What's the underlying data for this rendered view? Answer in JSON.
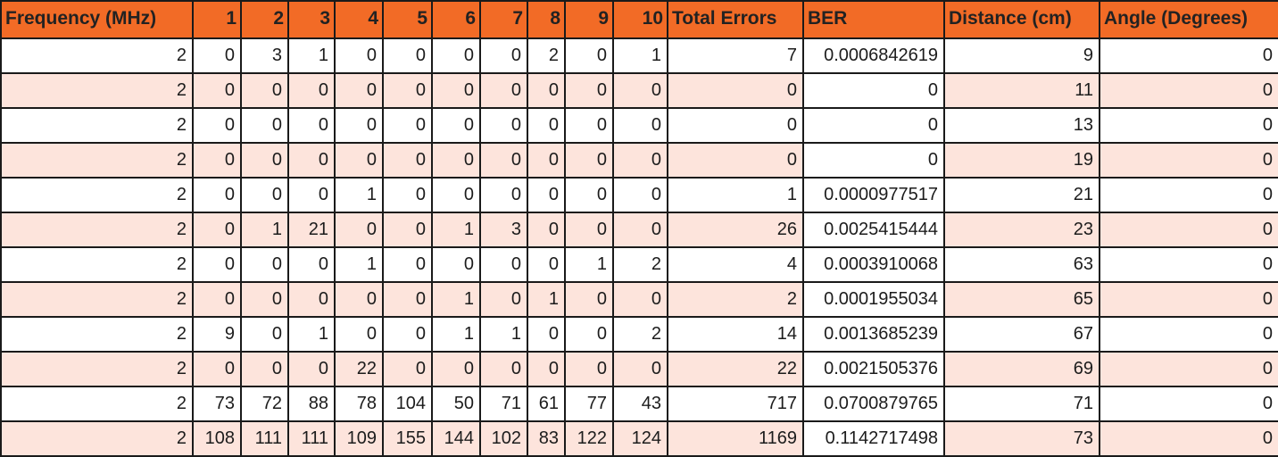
{
  "table": {
    "headers": [
      "Frequency (MHz)",
      "1",
      "2",
      "3",
      "4",
      "5",
      "6",
      "7",
      "8",
      "9",
      "10",
      "Total Errors",
      "BER",
      "Distance (cm)",
      "Angle (Degrees)"
    ],
    "rows": [
      [
        "2",
        "0",
        "3",
        "1",
        "0",
        "0",
        "0",
        "0",
        "2",
        "0",
        "1",
        "7",
        "0.0006842619",
        "9",
        "0"
      ],
      [
        "2",
        "0",
        "0",
        "0",
        "0",
        "0",
        "0",
        "0",
        "0",
        "0",
        "0",
        "0",
        "0",
        "11",
        "0"
      ],
      [
        "2",
        "0",
        "0",
        "0",
        "0",
        "0",
        "0",
        "0",
        "0",
        "0",
        "0",
        "0",
        "0",
        "13",
        "0"
      ],
      [
        "2",
        "0",
        "0",
        "0",
        "0",
        "0",
        "0",
        "0",
        "0",
        "0",
        "0",
        "0",
        "0",
        "19",
        "0"
      ],
      [
        "2",
        "0",
        "0",
        "0",
        "1",
        "0",
        "0",
        "0",
        "0",
        "0",
        "0",
        "1",
        "0.0000977517",
        "21",
        "0"
      ],
      [
        "2",
        "0",
        "1",
        "21",
        "0",
        "0",
        "1",
        "3",
        "0",
        "0",
        "0",
        "26",
        "0.0025415444",
        "23",
        "0"
      ],
      [
        "2",
        "0",
        "0",
        "0",
        "1",
        "0",
        "0",
        "0",
        "0",
        "1",
        "2",
        "4",
        "0.0003910068",
        "63",
        "0"
      ],
      [
        "2",
        "0",
        "0",
        "0",
        "0",
        "0",
        "1",
        "0",
        "1",
        "0",
        "0",
        "2",
        "0.0001955034",
        "65",
        "0"
      ],
      [
        "2",
        "9",
        "0",
        "1",
        "0",
        "0",
        "1",
        "1",
        "0",
        "0",
        "2",
        "14",
        "0.0013685239",
        "67",
        "0"
      ],
      [
        "2",
        "0",
        "0",
        "0",
        "22",
        "0",
        "0",
        "0",
        "0",
        "0",
        "0",
        "22",
        "0.0021505376",
        "69",
        "0"
      ],
      [
        "2",
        "73",
        "72",
        "88",
        "78",
        "104",
        "50",
        "71",
        "61",
        "77",
        "43",
        "717",
        "0.0700879765",
        "71",
        "0"
      ],
      [
        "2",
        "108",
        "111",
        "111",
        "109",
        "155",
        "144",
        "102",
        "83",
        "122",
        "124",
        "1169",
        "0.1142717498",
        "73",
        "0"
      ]
    ]
  },
  "colors": {
    "header_background": "#f26b26",
    "alternate_row_background": "#fde4dc",
    "grid_line": "#1a1a1a"
  }
}
